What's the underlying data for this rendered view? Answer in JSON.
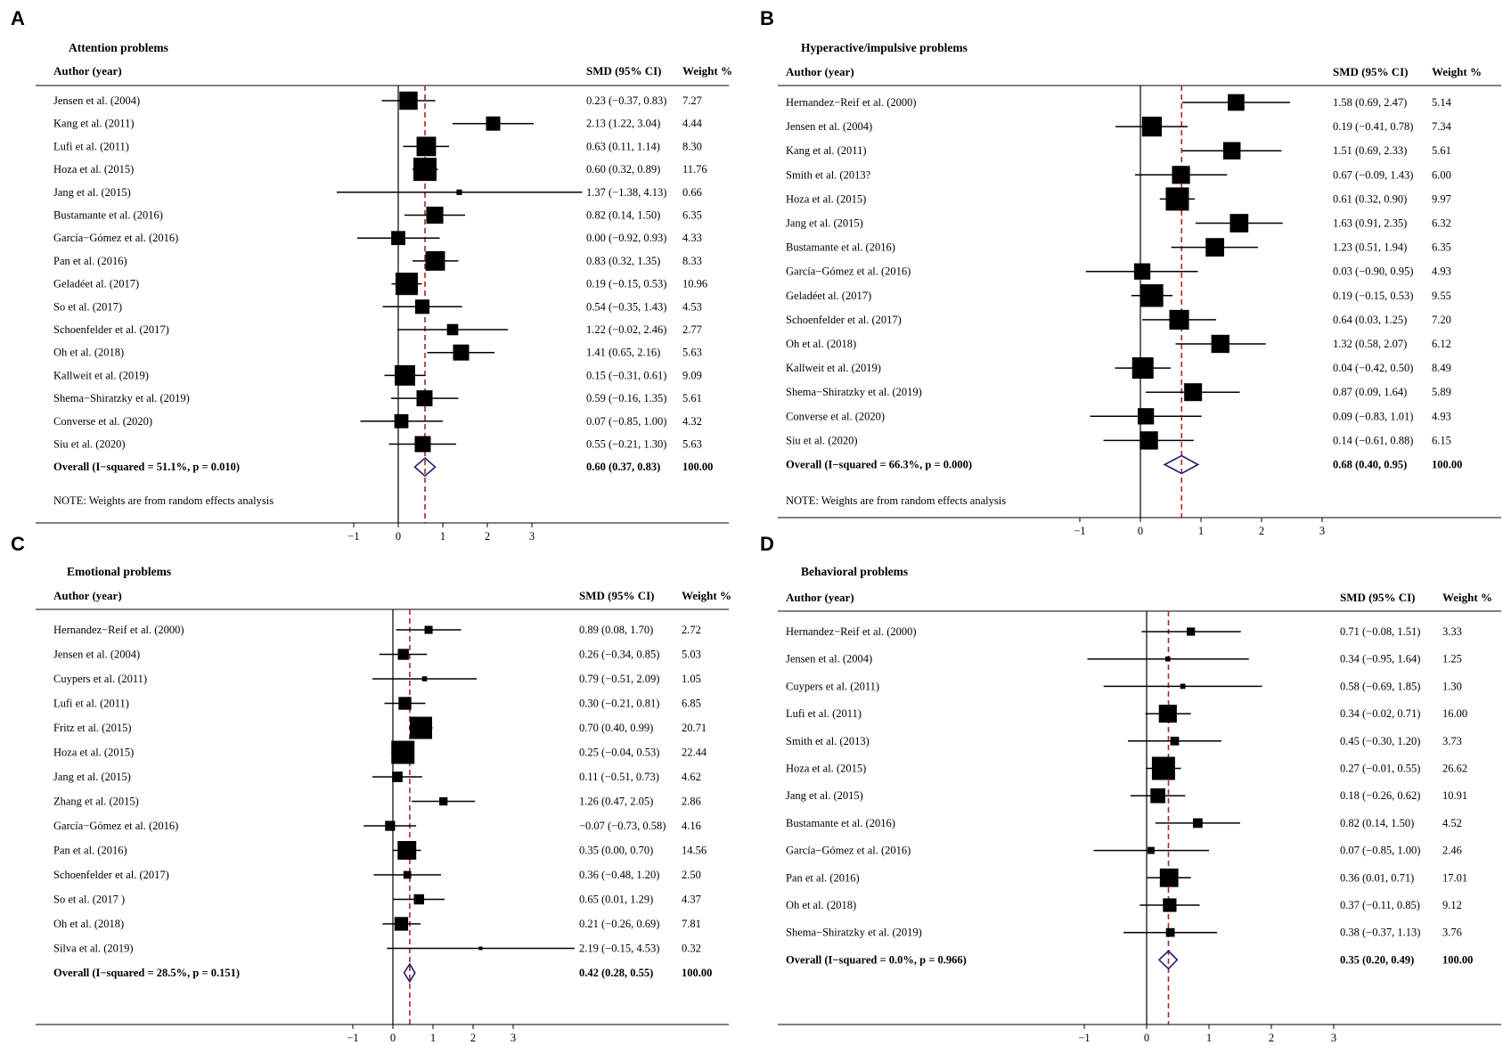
{
  "chart_data": [
    {
      "type": "forest",
      "panel_label": "A",
      "title": "Attention problems",
      "headers": {
        "author": "Author (year)",
        "smd": "SMD (95% CI)",
        "weight": "Weight %"
      },
      "xticks": [
        -1,
        0,
        1,
        2,
        3
      ],
      "xtick_labels": [
        "−1",
        "0",
        "1",
        "2",
        "3"
      ],
      "note": "NOTE: Weights are from random effects analysis",
      "studies": [
        {
          "author": "Jensen et al. (2004)",
          "smd": 0.23,
          "lo": -0.37,
          "hi": 0.83,
          "ci_text": "0.23 (−0.37, 0.83)",
          "weight": 7.27,
          "weight_text": "7.27"
        },
        {
          "author": "Kang et al. (2011)",
          "smd": 2.13,
          "lo": 1.22,
          "hi": 3.04,
          "ci_text": "2.13 (1.22, 3.04)",
          "weight": 4.44,
          "weight_text": "4.44"
        },
        {
          "author": "Lufi et al. (2011)",
          "smd": 0.63,
          "lo": 0.11,
          "hi": 1.14,
          "ci_text": "0.63 (0.11, 1.14)",
          "weight": 8.3,
          "weight_text": "8.30"
        },
        {
          "author": "Hoza et al. (2015)",
          "smd": 0.6,
          "lo": 0.32,
          "hi": 0.89,
          "ci_text": "0.60 (0.32, 0.89)",
          "weight": 11.76,
          "weight_text": "11.76"
        },
        {
          "author": "Jang et al. (2015)",
          "smd": 1.37,
          "lo": -1.38,
          "hi": 4.13,
          "ci_text": "1.37 (−1.38, 4.13)",
          "weight": 0.66,
          "weight_text": "0.66"
        },
        {
          "author": "Bustamante et al. (2016)",
          "smd": 0.82,
          "lo": 0.14,
          "hi": 1.5,
          "ci_text": "0.82 (0.14, 1.50)",
          "weight": 6.35,
          "weight_text": "6.35"
        },
        {
          "author": "García−Gómez et al. (2016)",
          "smd": 0.0,
          "lo": -0.92,
          "hi": 0.93,
          "ci_text": "0.00 (−0.92, 0.93)",
          "weight": 4.33,
          "weight_text": "4.33"
        },
        {
          "author": "Pan et al. (2016)",
          "smd": 0.83,
          "lo": 0.32,
          "hi": 1.35,
          "ci_text": "0.83 (0.32, 1.35)",
          "weight": 8.33,
          "weight_text": "8.33"
        },
        {
          "author": "Geladéet al. (2017)",
          "smd": 0.19,
          "lo": -0.15,
          "hi": 0.53,
          "ci_text": "0.19 (−0.15, 0.53)",
          "weight": 10.96,
          "weight_text": "10.96"
        },
        {
          "author": "So et al. (2017)",
          "smd": 0.54,
          "lo": -0.35,
          "hi": 1.43,
          "ci_text": "0.54 (−0.35, 1.43)",
          "weight": 4.53,
          "weight_text": "4.53"
        },
        {
          "author": "Schoenfelder et al. (2017)",
          "smd": 1.22,
          "lo": -0.02,
          "hi": 2.46,
          "ci_text": "1.22 (−0.02, 2.46)",
          "weight": 2.77,
          "weight_text": "2.77"
        },
        {
          "author": "Oh et al. (2018)",
          "smd": 1.41,
          "lo": 0.65,
          "hi": 2.16,
          "ci_text": "1.41 (0.65, 2.16)",
          "weight": 5.63,
          "weight_text": "5.63"
        },
        {
          "author": "Kallweit et al. (2019)",
          "smd": 0.15,
          "lo": -0.31,
          "hi": 0.61,
          "ci_text": "0.15 (−0.31, 0.61)",
          "weight": 9.09,
          "weight_text": "9.09"
        },
        {
          "author": "Shema−Shiratzky et al. (2019)",
          "smd": 0.59,
          "lo": -0.16,
          "hi": 1.35,
          "ci_text": "0.59 (−0.16, 1.35)",
          "weight": 5.61,
          "weight_text": "5.61"
        },
        {
          "author": "Converse et al. (2020)",
          "smd": 0.07,
          "lo": -0.85,
          "hi": 1.0,
          "ci_text": "0.07 (−0.85, 1.00)",
          "weight": 4.32,
          "weight_text": "4.32"
        },
        {
          "author": "Siu et al. (2020)",
          "smd": 0.55,
          "lo": -0.21,
          "hi": 1.3,
          "ci_text": "0.55 (−0.21, 1.30)",
          "weight": 5.63,
          "weight_text": "5.63"
        }
      ],
      "overall": {
        "label": "Overall  (I−squared = 51.1%, p = 0.010)",
        "smd": 0.6,
        "lo": 0.37,
        "hi": 0.83,
        "ci_text": "0.60 (0.37, 0.83)",
        "weight_text": "100.00"
      }
    },
    {
      "type": "forest",
      "panel_label": "B",
      "title": "Hyperactive/impulsive problems",
      "headers": {
        "author": "Author (year)",
        "smd": "SMD (95% CI)",
        "weight": "Weight %"
      },
      "xticks": [
        -1,
        0,
        1,
        2,
        3
      ],
      "xtick_labels": [
        "−1",
        "0",
        "1",
        "2",
        "3"
      ],
      "note": "NOTE: Weights are from random effects analysis",
      "studies": [
        {
          "author": "Hernandez−Reif et al. (2000)",
          "smd": 1.58,
          "lo": 0.69,
          "hi": 2.47,
          "ci_text": "1.58 (0.69, 2.47)",
          "weight": 5.14,
          "weight_text": "5.14"
        },
        {
          "author": "Jensen et al. (2004)",
          "smd": 0.19,
          "lo": -0.41,
          "hi": 0.78,
          "ci_text": "0.19 (−0.41, 0.78)",
          "weight": 7.34,
          "weight_text": "7.34"
        },
        {
          "author": "Kang et al. (2011)",
          "smd": 1.51,
          "lo": 0.69,
          "hi": 2.33,
          "ci_text": "1.51 (0.69, 2.33)",
          "weight": 5.61,
          "weight_text": "5.61"
        },
        {
          "author": "Smith et al. (2013?",
          "smd": 0.67,
          "lo": -0.09,
          "hi": 1.43,
          "ci_text": "0.67 (−0.09, 1.43)",
          "weight": 6.0,
          "weight_text": "6.00"
        },
        {
          "author": "Hoza et al. (2015)",
          "smd": 0.61,
          "lo": 0.32,
          "hi": 0.9,
          "ci_text": "0.61 (0.32, 0.90)",
          "weight": 9.97,
          "weight_text": "9.97"
        },
        {
          "author": "Jang et al. (2015)",
          "smd": 1.63,
          "lo": 0.91,
          "hi": 2.35,
          "ci_text": "1.63 (0.91, 2.35)",
          "weight": 6.32,
          "weight_text": "6.32"
        },
        {
          "author": "Bustamante et al. (2016)",
          "smd": 1.23,
          "lo": 0.51,
          "hi": 1.94,
          "ci_text": "1.23 (0.51, 1.94)",
          "weight": 6.35,
          "weight_text": "6.35"
        },
        {
          "author": "García−Gómez et al. (2016)",
          "smd": 0.03,
          "lo": -0.9,
          "hi": 0.95,
          "ci_text": "0.03 (−0.90, 0.95)",
          "weight": 4.93,
          "weight_text": "4.93"
        },
        {
          "author": "Geladéet al. (2017)",
          "smd": 0.19,
          "lo": -0.15,
          "hi": 0.53,
          "ci_text": "0.19 (−0.15, 0.53)",
          "weight": 9.55,
          "weight_text": "9.55"
        },
        {
          "author": "Schoenfelder et al. (2017)",
          "smd": 0.64,
          "lo": 0.03,
          "hi": 1.25,
          "ci_text": "0.64 (0.03, 1.25)",
          "weight": 7.2,
          "weight_text": "7.20"
        },
        {
          "author": "Oh et al. (2018)",
          "smd": 1.32,
          "lo": 0.58,
          "hi": 2.07,
          "ci_text": "1.32 (0.58, 2.07)",
          "weight": 6.12,
          "weight_text": "6.12"
        },
        {
          "author": "Kallweit et al. (2019)",
          "smd": 0.04,
          "lo": -0.42,
          "hi": 0.5,
          "ci_text": "0.04 (−0.42, 0.50)",
          "weight": 8.49,
          "weight_text": "8.49"
        },
        {
          "author": "Shema−Shiratzky et al. (2019)",
          "smd": 0.87,
          "lo": 0.09,
          "hi": 1.64,
          "ci_text": "0.87 (0.09, 1.64)",
          "weight": 5.89,
          "weight_text": "5.89"
        },
        {
          "author": "Converse et al. (2020)",
          "smd": 0.09,
          "lo": -0.83,
          "hi": 1.01,
          "ci_text": "0.09 (−0.83, 1.01)",
          "weight": 4.93,
          "weight_text": "4.93"
        },
        {
          "author": "Siu et al. (2020)",
          "smd": 0.14,
          "lo": -0.61,
          "hi": 0.88,
          "ci_text": "0.14 (−0.61, 0.88)",
          "weight": 6.15,
          "weight_text": "6.15"
        }
      ],
      "overall": {
        "label": "Overall  (I−squared = 66.3%, p = 0.000)",
        "smd": 0.68,
        "lo": 0.4,
        "hi": 0.95,
        "ci_text": "0.68 (0.40, 0.95)",
        "weight_text": "100.00"
      }
    },
    {
      "type": "forest",
      "panel_label": "C",
      "title": "Emotional problems",
      "headers": {
        "author": "Author (year)",
        "smd": "SMD (95% CI)",
        "weight": "Weight %"
      },
      "xticks": [
        -1,
        0,
        1,
        2,
        3
      ],
      "xtick_labels": [
        "−1",
        "0",
        "1",
        "2",
        "3"
      ],
      "studies": [
        {
          "author": "Hernandez−Reif et al. (2000)",
          "smd": 0.89,
          "lo": 0.08,
          "hi": 1.7,
          "ci_text": "0.89 (0.08, 1.70)",
          "weight": 2.72,
          "weight_text": "2.72"
        },
        {
          "author": "Jensen et al. (2004)",
          "smd": 0.26,
          "lo": -0.34,
          "hi": 0.85,
          "ci_text": "0.26 (−0.34, 0.85)",
          "weight": 5.03,
          "weight_text": "5.03"
        },
        {
          "author": "Cuypers et al. (2011)",
          "smd": 0.79,
          "lo": -0.51,
          "hi": 2.09,
          "ci_text": "0.79 (−0.51, 2.09)",
          "weight": 1.05,
          "weight_text": "1.05"
        },
        {
          "author": "Lufi et al. (2011)",
          "smd": 0.3,
          "lo": -0.21,
          "hi": 0.81,
          "ci_text": "0.30 (−0.21, 0.81)",
          "weight": 6.85,
          "weight_text": "6.85"
        },
        {
          "author": "Fritz et al. (2015)",
          "smd": 0.7,
          "lo": 0.4,
          "hi": 0.99,
          "ci_text": "0.70 (0.40, 0.99)",
          "weight": 20.71,
          "weight_text": "20.71"
        },
        {
          "author": "Hoza et al. (2015)",
          "smd": 0.25,
          "lo": -0.04,
          "hi": 0.53,
          "ci_text": "0.25 (−0.04, 0.53)",
          "weight": 22.44,
          "weight_text": "22.44"
        },
        {
          "author": "Jang et al. (2015)",
          "smd": 0.11,
          "lo": -0.51,
          "hi": 0.73,
          "ci_text": "0.11 (−0.51, 0.73)",
          "weight": 4.62,
          "weight_text": "4.62"
        },
        {
          "author": "Zhang et al. (2015)",
          "smd": 1.26,
          "lo": 0.47,
          "hi": 2.05,
          "ci_text": "1.26 (0.47, 2.05)",
          "weight": 2.86,
          "weight_text": "2.86"
        },
        {
          "author": "García−Gómez et al. (2016)",
          "smd": -0.07,
          "lo": -0.73,
          "hi": 0.58,
          "ci_text": "−0.07 (−0.73, 0.58)",
          "weight": 4.16,
          "weight_text": "4.16"
        },
        {
          "author": "Pan et al. (2016)",
          "smd": 0.35,
          "lo": 0.0,
          "hi": 0.7,
          "ci_text": "0.35 (0.00, 0.70)",
          "weight": 14.56,
          "weight_text": "14.56"
        },
        {
          "author": "Schoenfelder et al. (2017)",
          "smd": 0.36,
          "lo": -0.48,
          "hi": 1.2,
          "ci_text": "0.36 (−0.48, 1.20)",
          "weight": 2.5,
          "weight_text": "2.50"
        },
        {
          "author": "So et al. (2017 )",
          "smd": 0.65,
          "lo": 0.01,
          "hi": 1.29,
          "ci_text": "0.65 (0.01, 1.29)",
          "weight": 4.37,
          "weight_text": "4.37"
        },
        {
          "author": "Oh et al. (2018)",
          "smd": 0.21,
          "lo": -0.26,
          "hi": 0.69,
          "ci_text": "0.21 (−0.26, 0.69)",
          "weight": 7.81,
          "weight_text": "7.81"
        },
        {
          "author": "Silva et al. (2019)",
          "smd": 2.19,
          "lo": -0.15,
          "hi": 4.53,
          "ci_text": "2.19 (−0.15, 4.53)",
          "weight": 0.32,
          "weight_text": "0.32"
        }
      ],
      "overall": {
        "label": "Overall  (I−squared = 28.5%, p = 0.151)",
        "smd": 0.42,
        "lo": 0.28,
        "hi": 0.55,
        "ci_text": "0.42 (0.28, 0.55)",
        "weight_text": "100.00"
      }
    },
    {
      "type": "forest",
      "panel_label": "D",
      "title": "Behavioral problems",
      "headers": {
        "author": "Author (year)",
        "smd": "SMD (95% CI)",
        "weight": "Weight %"
      },
      "xticks": [
        -1,
        0,
        1,
        2,
        3
      ],
      "xtick_labels": [
        "−1",
        "0",
        "1",
        "2",
        "3"
      ],
      "studies": [
        {
          "author": "Hernandez−Reif et al. (2000)",
          "smd": 0.71,
          "lo": -0.08,
          "hi": 1.51,
          "ci_text": "0.71 (−0.08, 1.51)",
          "weight": 3.33,
          "weight_text": "3.33"
        },
        {
          "author": "Jensen et al. (2004)",
          "smd": 0.34,
          "lo": -0.95,
          "hi": 1.64,
          "ci_text": "0.34 (−0.95, 1.64)",
          "weight": 1.25,
          "weight_text": "1.25"
        },
        {
          "author": "Cuypers et al. (2011)",
          "smd": 0.58,
          "lo": -0.69,
          "hi": 1.85,
          "ci_text": "0.58 (−0.69, 1.85)",
          "weight": 1.3,
          "weight_text": "1.30"
        },
        {
          "author": "Lufi et al. (2011)",
          "smd": 0.34,
          "lo": -0.02,
          "hi": 0.71,
          "ci_text": "0.34 (−0.02, 0.71)",
          "weight": 16.0,
          "weight_text": "16.00"
        },
        {
          "author": "Smith et al. (2013)",
          "smd": 0.45,
          "lo": -0.3,
          "hi": 1.2,
          "ci_text": "0.45 (−0.30, 1.20)",
          "weight": 3.73,
          "weight_text": "3.73"
        },
        {
          "author": "Hoza et al. (2015)",
          "smd": 0.27,
          "lo": -0.01,
          "hi": 0.55,
          "ci_text": "0.27 (−0.01, 0.55)",
          "weight": 26.62,
          "weight_text": "26.62"
        },
        {
          "author": "Jang et al. (2015)",
          "smd": 0.18,
          "lo": -0.26,
          "hi": 0.62,
          "ci_text": "0.18 (−0.26, 0.62)",
          "weight": 10.91,
          "weight_text": "10.91"
        },
        {
          "author": "Bustamante et al. (2016)",
          "smd": 0.82,
          "lo": 0.14,
          "hi": 1.5,
          "ci_text": "0.82 (0.14, 1.50)",
          "weight": 4.52,
          "weight_text": "4.52"
        },
        {
          "author": "García−Gómez et al. (2016)",
          "smd": 0.07,
          "lo": -0.85,
          "hi": 1.0,
          "ci_text": "0.07 (−0.85, 1.00)",
          "weight": 2.46,
          "weight_text": "2.46"
        },
        {
          "author": "Pan et al. (2016)",
          "smd": 0.36,
          "lo": 0.01,
          "hi": 0.71,
          "ci_text": "0.36 (0.01, 0.71)",
          "weight": 17.01,
          "weight_text": "17.01"
        },
        {
          "author": "Oh et al. (2018)",
          "smd": 0.37,
          "lo": -0.11,
          "hi": 0.85,
          "ci_text": "0.37 (−0.11, 0.85)",
          "weight": 9.12,
          "weight_text": "9.12"
        },
        {
          "author": "Shema−Shiratzky et al. (2019)",
          "smd": 0.38,
          "lo": -0.37,
          "hi": 1.13,
          "ci_text": "0.38 (−0.37, 1.13)",
          "weight": 3.76,
          "weight_text": "3.76"
        }
      ],
      "overall": {
        "label": "Overall  (I−squared = 0.0%, p = 0.966)",
        "smd": 0.35,
        "lo": 0.2,
        "hi": 0.49,
        "ci_text": "0.35 (0.20, 0.49)",
        "weight_text": "100.00"
      }
    }
  ],
  "colors": {
    "ink": "#000000",
    "dashed_line": "#b22222",
    "diamond": "#1a1f6b"
  }
}
